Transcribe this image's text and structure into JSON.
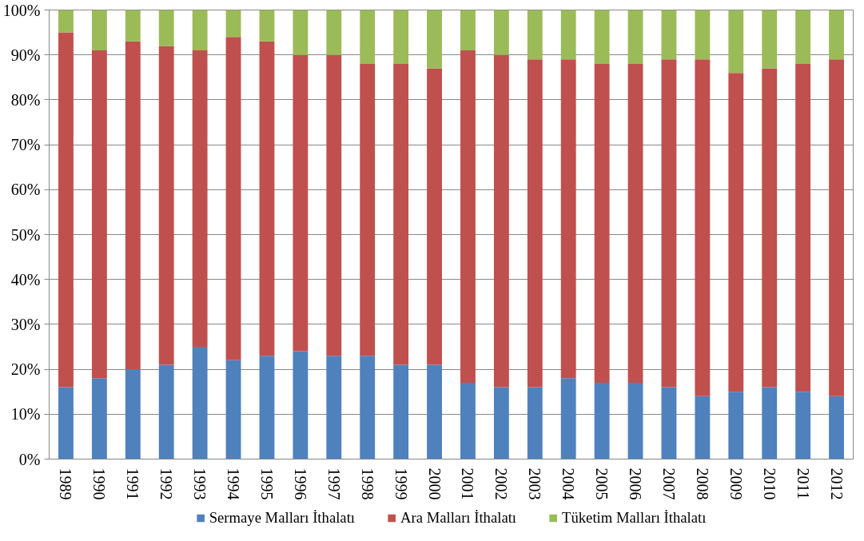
{
  "chart_data": {
    "type": "bar",
    "stacked": true,
    "categories": [
      "1989",
      "1990",
      "1991",
      "1992",
      "1993",
      "1994",
      "1995",
      "1996",
      "1997",
      "1998",
      "1999",
      "2000",
      "2001",
      "2002",
      "2003",
      "2004",
      "2005",
      "2006",
      "2007",
      "2008",
      "2009",
      "2010",
      "2011",
      "2012"
    ],
    "series": [
      {
        "name": "Sermaye Malları İthalatı",
        "color": "#4f81bd",
        "values": [
          16,
          18,
          20,
          21,
          25,
          22,
          23,
          24,
          23,
          23,
          21,
          21,
          17,
          16,
          16,
          18,
          17,
          17,
          16,
          14,
          15,
          16,
          15,
          14
        ]
      },
      {
        "name": "Ara Malları İthalatı",
        "color": "#c0504d",
        "values": [
          79,
          73,
          73,
          71,
          66,
          72,
          70,
          66,
          67,
          65,
          67,
          66,
          74,
          74,
          73,
          71,
          71,
          71,
          73,
          75,
          71,
          71,
          73,
          75
        ]
      },
      {
        "name": "Tüketim Malları İthalatı",
        "color": "#9bbb59",
        "values": [
          5,
          9,
          7,
          8,
          9,
          6,
          7,
          10,
          10,
          12,
          12,
          13,
          9,
          10,
          11,
          11,
          12,
          12,
          11,
          11,
          14,
          13,
          12,
          11
        ]
      }
    ],
    "ylim": [
      0,
      100
    ],
    "yticks": [
      {
        "value": 0,
        "label": "0%"
      },
      {
        "value": 10,
        "label": "10%"
      },
      {
        "value": 20,
        "label": "20%"
      },
      {
        "value": 30,
        "label": "30%"
      },
      {
        "value": 40,
        "label": "40%"
      },
      {
        "value": 50,
        "label": "50%"
      },
      {
        "value": 60,
        "label": "60%"
      },
      {
        "value": 70,
        "label": "70%"
      },
      {
        "value": 80,
        "label": "80%"
      },
      {
        "value": 90,
        "label": "90%"
      },
      {
        "value": 100,
        "label": "100%"
      }
    ],
    "grid": "y",
    "legend": "bottom"
  }
}
